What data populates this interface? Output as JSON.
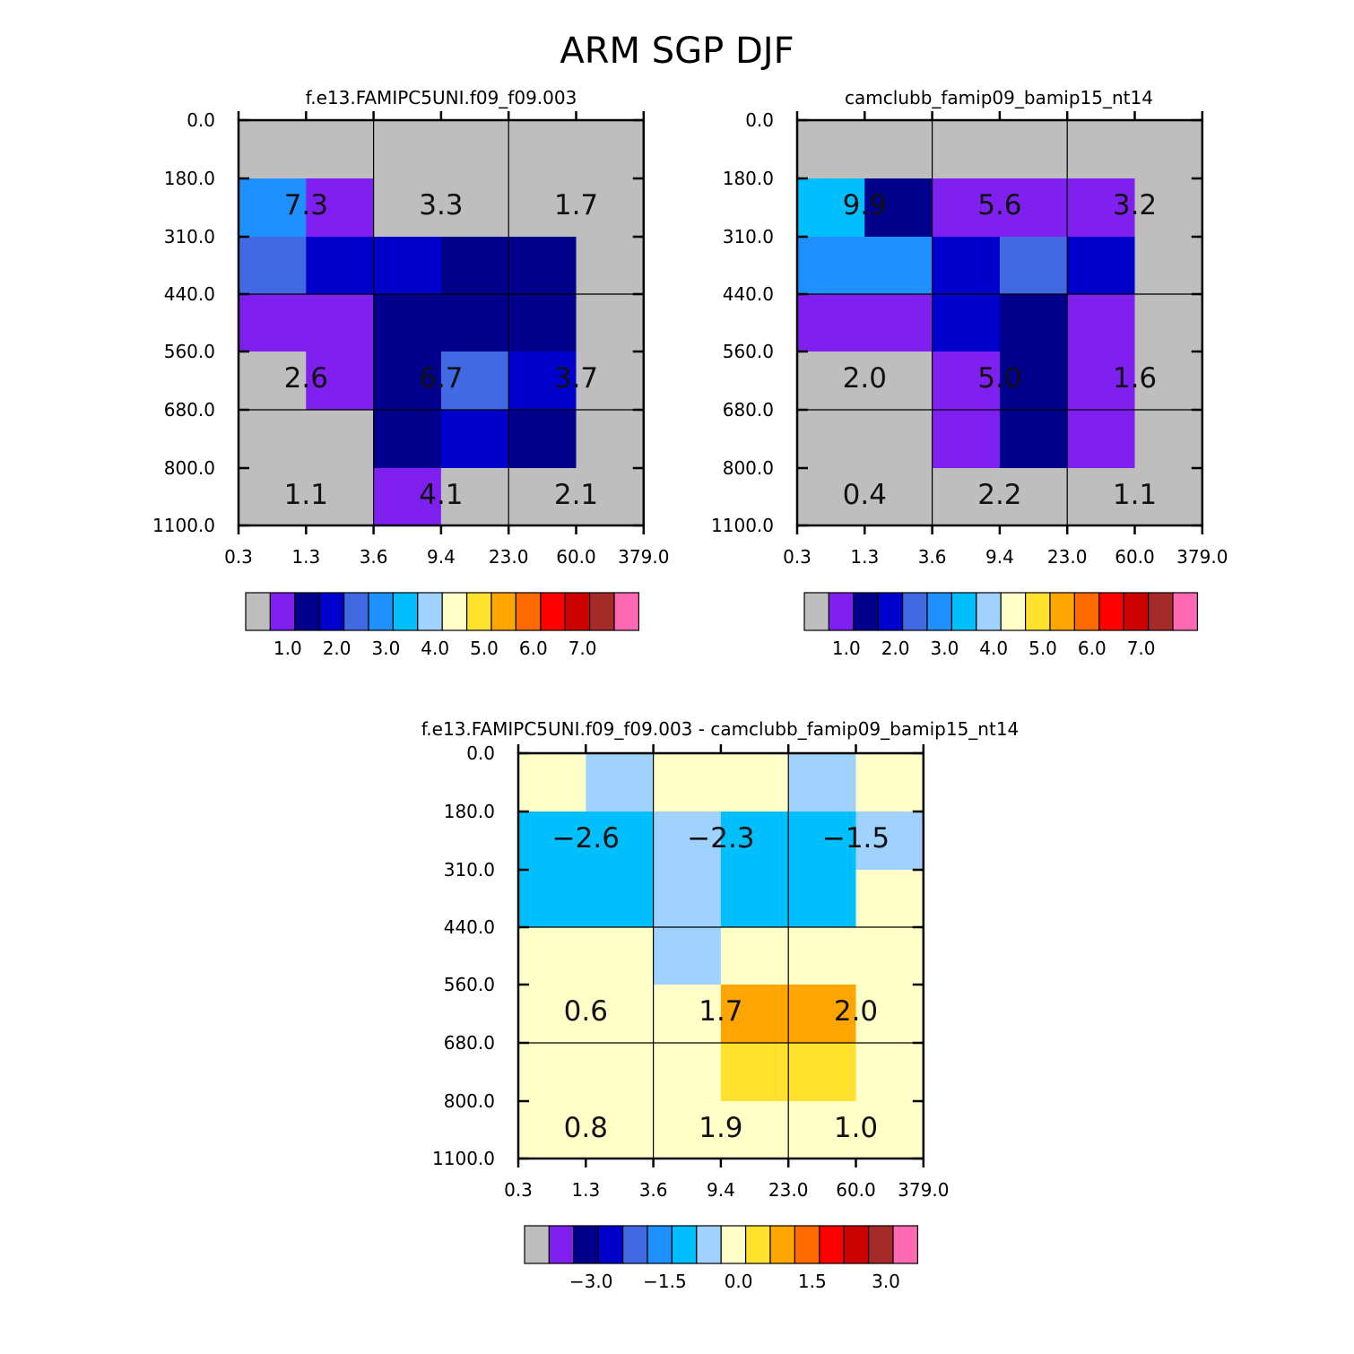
{
  "title": "ARM SGP DJF",
  "y_tick_labels": [
    "0.0",
    "180.0",
    "310.0",
    "440.0",
    "560.0",
    "680.0",
    "800.0",
    "1100.0"
  ],
  "x_tick_labels": [
    "0.3",
    "1.3",
    "3.6",
    "9.4",
    "23.0",
    "60.0",
    "379.0"
  ],
  "palette": [
    "#bebebe",
    "#8020f0",
    "#00008c",
    "#0000cd",
    "#4169e1",
    "#1e90ff",
    "#00bfff",
    "#a0d2ff",
    "#ffffc8",
    "#ffe12e",
    "#ffa500",
    "#ff6a00",
    "#ff0000",
    "#cd0000",
    "#a52a2a",
    "#ff69b4"
  ],
  "chart_data": [
    {
      "type": "heatmap",
      "title": "f.e13.FAMIPC5UNI.f09_f09.003",
      "xlabel": "",
      "ylabel": "",
      "x_bins": [
        "0.3",
        "1.3",
        "3.6",
        "9.4",
        "23.0",
        "60.0",
        "379.0"
      ],
      "y_bins": [
        "0.0",
        "180.0",
        "310.0",
        "440.0",
        "560.0",
        "680.0",
        "800.0",
        "1100.0"
      ],
      "cell_color_index": [
        [
          0,
          0,
          0,
          0,
          0,
          0
        ],
        [
          5,
          1,
          0,
          0,
          0,
          0
        ],
        [
          4,
          3,
          3,
          2,
          2,
          0
        ],
        [
          1,
          1,
          2,
          2,
          2,
          0
        ],
        [
          0,
          1,
          2,
          4,
          3,
          0
        ],
        [
          0,
          0,
          2,
          3,
          2,
          0
        ],
        [
          0,
          0,
          1,
          0,
          0,
          0
        ]
      ],
      "group_totals": [
        {
          "group": [
            0,
            0
          ],
          "value": "7.3"
        },
        {
          "group": [
            0,
            1
          ],
          "value": "3.3"
        },
        {
          "group": [
            0,
            2
          ],
          "value": "1.7"
        },
        {
          "group": [
            1,
            0
          ],
          "value": "2.6"
        },
        {
          "group": [
            1,
            1
          ],
          "value": "6.7"
        },
        {
          "group": [
            1,
            2
          ],
          "value": "3.7"
        },
        {
          "group": [
            2,
            0
          ],
          "value": "1.1"
        },
        {
          "group": [
            2,
            1
          ],
          "value": "4.1"
        },
        {
          "group": [
            2,
            2
          ],
          "value": "2.1"
        }
      ],
      "colorbar": {
        "labels": [
          "1.0",
          "2.0",
          "3.0",
          "4.0",
          "5.0",
          "6.0",
          "7.0"
        ],
        "levels": [
          0.5,
          1.0,
          1.5,
          2.0,
          2.5,
          3.0,
          3.5,
          4.0,
          4.5,
          5.0,
          5.5,
          6.0,
          6.5,
          7.0,
          7.5
        ]
      }
    },
    {
      "type": "heatmap",
      "title": "camclubb_famip09_bamip15_nt14",
      "xlabel": "",
      "ylabel": "",
      "x_bins": [
        "0.3",
        "1.3",
        "3.6",
        "9.4",
        "23.0",
        "60.0",
        "379.0"
      ],
      "y_bins": [
        "0.0",
        "180.0",
        "310.0",
        "440.0",
        "560.0",
        "680.0",
        "800.0",
        "1100.0"
      ],
      "cell_color_index": [
        [
          0,
          0,
          0,
          0,
          0,
          0
        ],
        [
          6,
          2,
          1,
          1,
          1,
          0
        ],
        [
          5,
          5,
          3,
          4,
          3,
          0
        ],
        [
          1,
          1,
          3,
          2,
          1,
          0
        ],
        [
          0,
          0,
          1,
          2,
          1,
          0
        ],
        [
          0,
          0,
          1,
          2,
          1,
          0
        ],
        [
          0,
          0,
          0,
          0,
          0,
          0
        ]
      ],
      "group_totals": [
        {
          "group": [
            0,
            0
          ],
          "value": "9.9"
        },
        {
          "group": [
            0,
            1
          ],
          "value": "5.6"
        },
        {
          "group": [
            0,
            2
          ],
          "value": "3.2"
        },
        {
          "group": [
            1,
            0
          ],
          "value": "2.0"
        },
        {
          "group": [
            1,
            1
          ],
          "value": "5.0"
        },
        {
          "group": [
            1,
            2
          ],
          "value": "1.6"
        },
        {
          "group": [
            2,
            0
          ],
          "value": "0.4"
        },
        {
          "group": [
            2,
            1
          ],
          "value": "2.2"
        },
        {
          "group": [
            2,
            2
          ],
          "value": "1.1"
        }
      ],
      "colorbar": {
        "labels": [
          "1.0",
          "2.0",
          "3.0",
          "4.0",
          "5.0",
          "6.0",
          "7.0"
        ],
        "levels": [
          0.5,
          1.0,
          1.5,
          2.0,
          2.5,
          3.0,
          3.5,
          4.0,
          4.5,
          5.0,
          5.5,
          6.0,
          6.5,
          7.0,
          7.5
        ]
      }
    },
    {
      "type": "heatmap",
      "title": "f.e13.FAMIPC5UNI.f09_f09.003 - camclubb_famip09_bamip15_nt14",
      "xlabel": "",
      "ylabel": "",
      "x_bins": [
        "0.3",
        "1.3",
        "3.6",
        "9.4",
        "23.0",
        "60.0",
        "379.0"
      ],
      "y_bins": [
        "0.0",
        "180.0",
        "310.0",
        "440.0",
        "560.0",
        "680.0",
        "800.0",
        "1100.0"
      ],
      "cell_color_index": [
        [
          8,
          7,
          8,
          8,
          7,
          8
        ],
        [
          6,
          6,
          7,
          6,
          6,
          7
        ],
        [
          6,
          6,
          7,
          6,
          6,
          8
        ],
        [
          8,
          8,
          7,
          8,
          8,
          8
        ],
        [
          8,
          8,
          8,
          10,
          10,
          8
        ],
        [
          8,
          8,
          8,
          9,
          9,
          8
        ],
        [
          8,
          8,
          8,
          8,
          8,
          8
        ]
      ],
      "group_totals": [
        {
          "group": [
            0,
            0
          ],
          "value": "−2.6"
        },
        {
          "group": [
            0,
            1
          ],
          "value": "−2.3"
        },
        {
          "group": [
            0,
            2
          ],
          "value": "−1.5"
        },
        {
          "group": [
            1,
            0
          ],
          "value": "0.6"
        },
        {
          "group": [
            1,
            1
          ],
          "value": "1.7"
        },
        {
          "group": [
            1,
            2
          ],
          "value": "2.0"
        },
        {
          "group": [
            2,
            0
          ],
          "value": "0.8"
        },
        {
          "group": [
            2,
            1
          ],
          "value": "1.9"
        },
        {
          "group": [
            2,
            2
          ],
          "value": "1.0"
        }
      ],
      "colorbar": {
        "labels": [
          "−3.0",
          "−1.5",
          "0.0",
          "1.5",
          "3.0"
        ],
        "levels": [
          -3.5,
          -3.0,
          -2.5,
          -2.0,
          -1.5,
          -1.0,
          -0.5,
          0.0,
          0.5,
          1.0,
          1.5,
          2.0,
          2.5,
          3.0,
          3.5
        ]
      }
    }
  ]
}
